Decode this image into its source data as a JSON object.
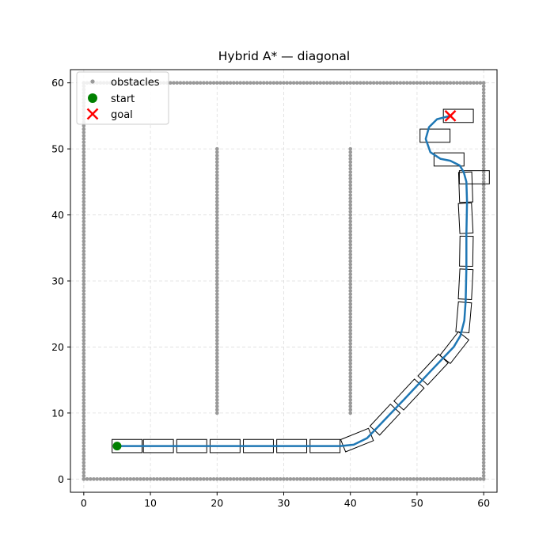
{
  "chart_data": {
    "type": "scatter",
    "title": "Hybrid A* — diagonal",
    "xlabel": "",
    "ylabel": "",
    "xlim": [
      -2,
      62
    ],
    "ylim": [
      -2,
      62
    ],
    "xticks": [
      0,
      10,
      20,
      30,
      40,
      50,
      60
    ],
    "yticks": [
      0,
      10,
      20,
      30,
      40,
      50,
      60
    ],
    "grid": true,
    "legend_position": "top-left",
    "colors": {
      "obstacles": "#999999",
      "start": "#008000",
      "goal": "#ff0000",
      "path": "#1f77b4",
      "footprint": "#000000",
      "grid": "#dddddd"
    },
    "series": [
      {
        "name": "obstacles",
        "marker": "dot",
        "segments": [
          {
            "from": [
              0,
              0
            ],
            "to": [
              60,
              0
            ]
          },
          {
            "from": [
              60,
              0
            ],
            "to": [
              60,
              60
            ]
          },
          {
            "from": [
              60,
              60
            ],
            "to": [
              0,
              60
            ]
          },
          {
            "from": [
              0,
              60
            ],
            "to": [
              0,
              0
            ]
          },
          {
            "from": [
              20,
              10
            ],
            "to": [
              20,
              50
            ]
          },
          {
            "from": [
              40,
              10
            ],
            "to": [
              40,
              50
            ]
          }
        ]
      },
      {
        "name": "start",
        "marker": "circle",
        "x": 5,
        "y": 5
      },
      {
        "name": "goal",
        "marker": "x",
        "x": 55,
        "y": 55
      }
    ],
    "path": [
      [
        5,
        5
      ],
      [
        10,
        5
      ],
      [
        15,
        5
      ],
      [
        20,
        5
      ],
      [
        25,
        5
      ],
      [
        30,
        5
      ],
      [
        35,
        5
      ],
      [
        38.5,
        5
      ],
      [
        40.5,
        5.2
      ],
      [
        42.5,
        6.2
      ],
      [
        44.5,
        8.3
      ],
      [
        48,
        12
      ],
      [
        52,
        16.3
      ],
      [
        55.5,
        20
      ],
      [
        56.5,
        21.7
      ],
      [
        57.1,
        24
      ],
      [
        57.3,
        27
      ],
      [
        57.4,
        32
      ],
      [
        57.4,
        37
      ],
      [
        57.5,
        42
      ],
      [
        57.4,
        45
      ],
      [
        57,
        46.5
      ],
      [
        56.4,
        47.5
      ],
      [
        55,
        48.2
      ],
      [
        53.5,
        48.5
      ],
      [
        52,
        49.5
      ],
      [
        51.3,
        51.5
      ],
      [
        51.8,
        53.3
      ],
      [
        53,
        54.5
      ],
      [
        55,
        55
      ]
    ],
    "footprints": [
      {
        "x": 6.5,
        "y": 5,
        "heading": 0
      },
      {
        "x": 11.2,
        "y": 5,
        "heading": 0
      },
      {
        "x": 16.2,
        "y": 5,
        "heading": 0
      },
      {
        "x": 21.2,
        "y": 5,
        "heading": 0
      },
      {
        "x": 26.2,
        "y": 5,
        "heading": 0
      },
      {
        "x": 31.2,
        "y": 5,
        "heading": 0
      },
      {
        "x": 36.2,
        "y": 5,
        "heading": 0
      },
      {
        "x": 41.0,
        "y": 5.9,
        "heading": 22
      },
      {
        "x": 45.2,
        "y": 9.0,
        "heading": 47
      },
      {
        "x": 48.8,
        "y": 12.8,
        "heading": 47
      },
      {
        "x": 52.4,
        "y": 16.6,
        "heading": 47
      },
      {
        "x": 55.6,
        "y": 19.9,
        "heading": 52
      },
      {
        "x": 57.0,
        "y": 24.5,
        "heading": 85
      },
      {
        "x": 57.3,
        "y": 29.5,
        "heading": 87
      },
      {
        "x": 57.4,
        "y": 34.5,
        "heading": 89
      },
      {
        "x": 57.3,
        "y": 39.5,
        "heading": 93
      },
      {
        "x": 57.3,
        "y": 44.2,
        "heading": 92
      },
      {
        "x": 58.6,
        "y": 45.7,
        "heading": 0
      },
      {
        "x": 54.8,
        "y": 48.4,
        "heading": 0
      },
      {
        "x": 52.7,
        "y": 52.0,
        "heading": 0
      },
      {
        "x": 56.2,
        "y": 55.0,
        "heading": 0
      }
    ],
    "footprint_size": {
      "length": 4.5,
      "width": 2.0
    }
  }
}
